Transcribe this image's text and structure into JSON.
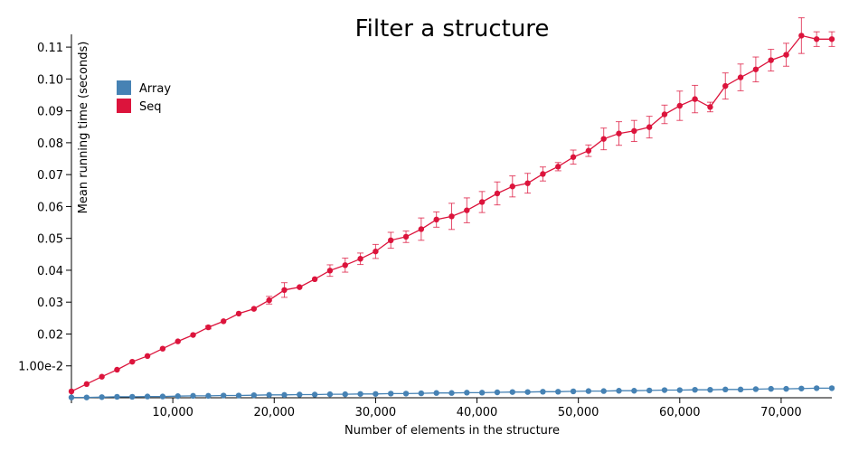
{
  "chart_data": {
    "type": "line",
    "title": "Filter a structure",
    "xlabel": "Number of elements in the structure",
    "ylabel": "Mean running time (seconds)",
    "xlim": [
      0,
      75000
    ],
    "ylim": [
      0,
      0.114
    ],
    "grid": false,
    "legend_placement": "top-left",
    "x_ticks": [
      {
        "value": 10000,
        "label": "10,000"
      },
      {
        "value": 20000,
        "label": "20,000"
      },
      {
        "value": 30000,
        "label": "30,000"
      },
      {
        "value": 40000,
        "label": "40,000"
      },
      {
        "value": 50000,
        "label": "50,000"
      },
      {
        "value": 60000,
        "label": "60,000"
      },
      {
        "value": 70000,
        "label": "70,000"
      }
    ],
    "y_ticks": [
      {
        "value": 0.01,
        "label": "1.00e-2"
      },
      {
        "value": 0.02,
        "label": "0.02"
      },
      {
        "value": 0.03,
        "label": "0.03"
      },
      {
        "value": 0.04,
        "label": "0.04"
      },
      {
        "value": 0.05,
        "label": "0.05"
      },
      {
        "value": 0.06,
        "label": "0.06"
      },
      {
        "value": 0.07,
        "label": "0.07"
      },
      {
        "value": 0.08,
        "label": "0.08"
      },
      {
        "value": 0.09,
        "label": "0.09"
      },
      {
        "value": 0.1,
        "label": "0.10"
      },
      {
        "value": 0.11,
        "label": "0.11"
      }
    ],
    "x": [
      0,
      1500,
      3000,
      4500,
      6000,
      7500,
      9000,
      10500,
      12000,
      13500,
      15000,
      16500,
      18000,
      19500,
      21000,
      22500,
      24000,
      25500,
      27000,
      28500,
      30000,
      31500,
      33000,
      34500,
      36000,
      37500,
      39000,
      40500,
      42000,
      43500,
      45000,
      46500,
      48000,
      49500,
      51000,
      52500,
      54000,
      55500,
      57000,
      58500,
      60000,
      61500,
      63000,
      64500,
      66000,
      67500,
      69000,
      70500,
      72000,
      73500,
      75000
    ],
    "series": [
      {
        "name": "Array",
        "color": "#4682b4",
        "values": [
          0.0001,
          0.0001,
          0.0002,
          0.0003,
          0.0003,
          0.0004,
          0.0004,
          0.0005,
          0.0006,
          0.0006,
          0.0007,
          0.0007,
          0.0008,
          0.0009,
          0.0009,
          0.001,
          0.001,
          0.0011,
          0.0011,
          0.0012,
          0.0012,
          0.0013,
          0.0013,
          0.0014,
          0.0015,
          0.0015,
          0.0016,
          0.0016,
          0.0017,
          0.0018,
          0.0018,
          0.0019,
          0.0019,
          0.002,
          0.0021,
          0.0021,
          0.0022,
          0.0022,
          0.0023,
          0.0024,
          0.0024,
          0.0025,
          0.0025,
          0.0026,
          0.0026,
          0.0027,
          0.0028,
          0.0028,
          0.0029,
          0.003,
          0.003
        ],
        "errors": [
          0,
          0,
          0,
          0,
          0,
          0,
          0,
          0,
          0,
          0,
          0,
          0,
          0,
          0,
          0,
          0,
          0,
          0,
          0,
          0,
          0,
          0,
          0,
          0,
          0,
          0,
          0,
          0,
          0,
          0,
          0,
          0,
          0,
          0,
          0,
          0,
          0,
          0,
          0,
          0,
          0,
          0,
          0,
          0,
          0,
          0,
          0,
          0,
          0,
          0,
          0
        ]
      },
      {
        "name": "Seq",
        "color": "#dc143c",
        "values": [
          0.002,
          0.0043,
          0.0066,
          0.0088,
          0.0113,
          0.0131,
          0.0154,
          0.0177,
          0.0197,
          0.0221,
          0.024,
          0.0264,
          0.0279,
          0.0306,
          0.0338,
          0.0347,
          0.0372,
          0.0399,
          0.0416,
          0.0436,
          0.0459,
          0.0494,
          0.0505,
          0.0529,
          0.0559,
          0.0569,
          0.0588,
          0.0614,
          0.0641,
          0.0663,
          0.0673,
          0.0702,
          0.0725,
          0.0755,
          0.0775,
          0.0812,
          0.0829,
          0.0837,
          0.0849,
          0.0889,
          0.0916,
          0.0937,
          0.0912,
          0.0978,
          0.1005,
          0.103,
          0.1059,
          0.1076,
          0.1136,
          0.1125,
          0.1125
        ],
        "errors": [
          0,
          0,
          0,
          0,
          0,
          0,
          0,
          0,
          0,
          0.0005,
          0,
          0,
          0,
          0.0012,
          0.0023,
          0,
          0,
          0.0018,
          0.0022,
          0.0018,
          0.0022,
          0.0025,
          0.0018,
          0.0035,
          0.0024,
          0.0041,
          0.0039,
          0.0033,
          0.0036,
          0.0033,
          0.0031,
          0.0022,
          0.0013,
          0.0022,
          0.0018,
          0.0034,
          0.0037,
          0.0033,
          0.0034,
          0.0029,
          0.0046,
          0.0043,
          0.0015,
          0.0041,
          0.0042,
          0.0039,
          0.0034,
          0.0036,
          0.0056,
          0.0023,
          0.0023
        ]
      }
    ]
  }
}
